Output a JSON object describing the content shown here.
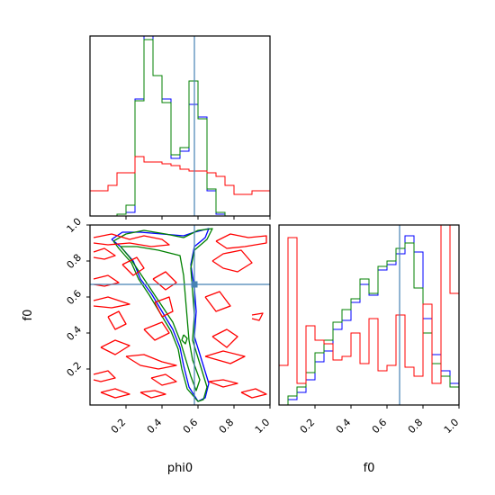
{
  "chart_data": {
    "type": "corner",
    "xlabels": [
      "phi0",
      "f0"
    ],
    "ylabel_2d": "f0",
    "ticks": [
      "0.2",
      "0.4",
      "0.6",
      "0.8",
      "1.0"
    ],
    "tick_values": [
      0.2,
      0.4,
      0.6,
      0.8,
      1.0
    ],
    "xlim": [
      0.0,
      1.0
    ],
    "ylim": [
      0.0,
      1.0
    ],
    "truth": {
      "phi0": 0.58,
      "f0": 0.67
    },
    "colors": {
      "blue": "#0000ff",
      "green": "#008000",
      "red": "#ff0000",
      "truth": "#4682b4"
    },
    "histograms": {
      "phi0": {
        "bin_edges": [
          0.0,
          0.05,
          0.1,
          0.15,
          0.2,
          0.25,
          0.3,
          0.35,
          0.4,
          0.45,
          0.5,
          0.55,
          0.6,
          0.65,
          0.7,
          0.75,
          0.8,
          0.85,
          0.9,
          0.95,
          1.0
        ],
        "ymax": 1.0,
        "series": [
          {
            "color": "blue",
            "values": [
              0,
              0,
              0,
              0.01,
              0.02,
              0.65,
              1.0,
              0.78,
              0.65,
              0.32,
              0.36,
              0.62,
              0.55,
              0.14,
              0.01,
              0,
              0,
              0,
              0,
              0
            ]
          },
          {
            "color": "green",
            "values": [
              0,
              0,
              0,
              0.01,
              0.06,
              0.64,
              0.98,
              0.78,
              0.63,
              0.34,
              0.38,
              0.75,
              0.54,
              0.15,
              0.02,
              0,
              0,
              0,
              0,
              0
            ]
          },
          {
            "color": "red",
            "values": [
              0.14,
              0.14,
              0.17,
              0.24,
              0.24,
              0.33,
              0.3,
              0.3,
              0.29,
              0.28,
              0.26,
              0.25,
              0.25,
              0.24,
              0.22,
              0.17,
              0.12,
              0.12,
              0.14,
              0.14
            ]
          }
        ]
      },
      "f0": {
        "bin_edges": [
          0.0,
          0.05,
          0.1,
          0.15,
          0.2,
          0.25,
          0.3,
          0.35,
          0.4,
          0.45,
          0.5,
          0.55,
          0.6,
          0.65,
          0.7,
          0.75,
          0.8,
          0.85,
          0.9,
          0.95,
          1.0
        ],
        "ymax": 1.0,
        "series": [
          {
            "color": "blue",
            "values": [
              0.0,
              0.03,
              0.07,
              0.14,
              0.24,
              0.3,
              0.42,
              0.47,
              0.57,
              0.67,
              0.61,
              0.75,
              0.78,
              0.84,
              0.94,
              0.85,
              0.48,
              0.28,
              0.19,
              0.12
            ]
          },
          {
            "color": "green",
            "values": [
              0.0,
              0.05,
              0.1,
              0.18,
              0.29,
              0.36,
              0.46,
              0.53,
              0.59,
              0.7,
              0.62,
              0.77,
              0.8,
              0.87,
              0.9,
              0.65,
              0.4,
              0.23,
              0.16,
              0.1
            ]
          },
          {
            "color": "red",
            "values": [
              0.22,
              0.93,
              0.12,
              0.44,
              0.36,
              0.34,
              0.25,
              0.27,
              0.4,
              0.23,
              0.48,
              0.19,
              0.22,
              0.5,
              0.21,
              0.16,
              0.56,
              0.12,
              1.0,
              0.62
            ]
          }
        ]
      }
    },
    "contours_2d": [
      {
        "color": "blue",
        "paths": [
          [
            [
              0.12,
              0.92
            ],
            [
              0.18,
              0.96
            ],
            [
              0.28,
              0.96
            ],
            [
              0.4,
              0.95
            ],
            [
              0.52,
              0.94
            ],
            [
              0.58,
              0.96
            ],
            [
              0.66,
              0.98
            ],
            [
              0.64,
              0.93
            ],
            [
              0.58,
              0.88
            ],
            [
              0.56,
              0.78
            ],
            [
              0.58,
              0.65
            ],
            [
              0.59,
              0.52
            ],
            [
              0.58,
              0.38
            ],
            [
              0.62,
              0.25
            ],
            [
              0.66,
              0.12
            ],
            [
              0.64,
              0.04
            ],
            [
              0.6,
              0.02
            ],
            [
              0.55,
              0.1
            ],
            [
              0.52,
              0.22
            ],
            [
              0.5,
              0.32
            ],
            [
              0.46,
              0.42
            ],
            [
              0.4,
              0.52
            ],
            [
              0.34,
              0.62
            ],
            [
              0.28,
              0.7
            ],
            [
              0.24,
              0.8
            ],
            [
              0.17,
              0.88
            ],
            [
              0.12,
              0.92
            ]
          ]
        ]
      },
      {
        "color": "green",
        "paths": [
          [
            [
              0.13,
              0.91
            ],
            [
              0.2,
              0.95
            ],
            [
              0.3,
              0.97
            ],
            [
              0.42,
              0.95
            ],
            [
              0.52,
              0.93
            ],
            [
              0.6,
              0.97
            ],
            [
              0.68,
              0.98
            ],
            [
              0.65,
              0.92
            ],
            [
              0.58,
              0.86
            ],
            [
              0.56,
              0.76
            ],
            [
              0.57,
              0.63
            ],
            [
              0.58,
              0.5
            ],
            [
              0.57,
              0.36
            ],
            [
              0.61,
              0.23
            ],
            [
              0.65,
              0.1
            ],
            [
              0.63,
              0.03
            ],
            [
              0.6,
              0.02
            ],
            [
              0.54,
              0.09
            ],
            [
              0.51,
              0.2
            ],
            [
              0.49,
              0.31
            ],
            [
              0.45,
              0.41
            ],
            [
              0.39,
              0.51
            ],
            [
              0.33,
              0.61
            ],
            [
              0.27,
              0.7
            ],
            [
              0.23,
              0.79
            ],
            [
              0.16,
              0.87
            ],
            [
              0.13,
              0.91
            ]
          ],
          [
            [
              0.17,
              0.88
            ],
            [
              0.22,
              0.82
            ],
            [
              0.28,
              0.73
            ],
            [
              0.34,
              0.64
            ],
            [
              0.4,
              0.55
            ],
            [
              0.46,
              0.46
            ],
            [
              0.5,
              0.36
            ],
            [
              0.53,
              0.26
            ],
            [
              0.56,
              0.16
            ],
            [
              0.59,
              0.08
            ],
            [
              0.61,
              0.14
            ],
            [
              0.57,
              0.25
            ],
            [
              0.55,
              0.36
            ],
            [
              0.54,
              0.48
            ],
            [
              0.53,
              0.6
            ],
            [
              0.52,
              0.72
            ],
            [
              0.5,
              0.83
            ],
            [
              0.38,
              0.86
            ],
            [
              0.26,
              0.88
            ],
            [
              0.17,
              0.88
            ]
          ],
          [
            [
              0.52,
              0.39
            ],
            [
              0.54,
              0.37
            ],
            [
              0.53,
              0.34
            ],
            [
              0.51,
              0.36
            ],
            [
              0.52,
              0.39
            ]
          ]
        ]
      },
      {
        "color": "red",
        "paths": [
          [
            [
              0.02,
              0.93
            ],
            [
              0.12,
              0.95
            ],
            [
              0.22,
              0.92
            ],
            [
              0.3,
              0.94
            ],
            [
              0.4,
              0.92
            ],
            [
              0.44,
              0.89
            ],
            [
              0.34,
              0.88
            ],
            [
              0.22,
              0.9
            ],
            [
              0.1,
              0.89
            ],
            [
              0.02,
              0.9
            ]
          ],
          [
            [
              0.7,
              0.91
            ],
            [
              0.78,
              0.95
            ],
            [
              0.88,
              0.93
            ],
            [
              0.98,
              0.94
            ],
            [
              0.98,
              0.9
            ],
            [
              0.86,
              0.88
            ],
            [
              0.76,
              0.87
            ],
            [
              0.7,
              0.91
            ]
          ],
          [
            [
              0.02,
              0.85
            ],
            [
              0.08,
              0.87
            ],
            [
              0.14,
              0.83
            ],
            [
              0.08,
              0.81
            ],
            [
              0.02,
              0.82
            ]
          ],
          [
            [
              0.18,
              0.78
            ],
            [
              0.26,
              0.82
            ],
            [
              0.3,
              0.76
            ],
            [
              0.24,
              0.72
            ],
            [
              0.18,
              0.78
            ]
          ],
          [
            [
              0.68,
              0.8
            ],
            [
              0.74,
              0.84
            ],
            [
              0.84,
              0.86
            ],
            [
              0.9,
              0.79
            ],
            [
              0.82,
              0.74
            ],
            [
              0.74,
              0.76
            ],
            [
              0.68,
              0.8
            ]
          ],
          [
            [
              0.02,
              0.7
            ],
            [
              0.1,
              0.72
            ],
            [
              0.16,
              0.68
            ],
            [
              0.08,
              0.66
            ],
            [
              0.02,
              0.67
            ]
          ],
          [
            [
              0.35,
              0.7
            ],
            [
              0.42,
              0.74
            ],
            [
              0.48,
              0.68
            ],
            [
              0.42,
              0.64
            ],
            [
              0.35,
              0.7
            ]
          ],
          [
            [
              0.02,
              0.58
            ],
            [
              0.1,
              0.6
            ],
            [
              0.22,
              0.56
            ],
            [
              0.12,
              0.54
            ],
            [
              0.02,
              0.55
            ]
          ],
          [
            [
              0.36,
              0.57
            ],
            [
              0.44,
              0.6
            ],
            [
              0.46,
              0.52
            ],
            [
              0.4,
              0.49
            ],
            [
              0.36,
              0.57
            ]
          ],
          [
            [
              0.64,
              0.6
            ],
            [
              0.72,
              0.63
            ],
            [
              0.78,
              0.55
            ],
            [
              0.7,
              0.52
            ],
            [
              0.64,
              0.6
            ]
          ],
          [
            [
              0.9,
              0.5
            ],
            [
              0.96,
              0.51
            ],
            [
              0.94,
              0.47
            ],
            [
              0.9,
              0.48
            ]
          ],
          [
            [
              0.1,
              0.49
            ],
            [
              0.16,
              0.52
            ],
            [
              0.2,
              0.45
            ],
            [
              0.14,
              0.42
            ],
            [
              0.1,
              0.49
            ]
          ],
          [
            [
              0.3,
              0.42
            ],
            [
              0.4,
              0.46
            ],
            [
              0.44,
              0.4
            ],
            [
              0.36,
              0.36
            ],
            [
              0.3,
              0.42
            ]
          ],
          [
            [
              0.68,
              0.38
            ],
            [
              0.76,
              0.42
            ],
            [
              0.82,
              0.38
            ],
            [
              0.76,
              0.32
            ],
            [
              0.68,
              0.38
            ]
          ],
          [
            [
              0.06,
              0.32
            ],
            [
              0.14,
              0.36
            ],
            [
              0.22,
              0.33
            ],
            [
              0.14,
              0.28
            ],
            [
              0.06,
              0.32
            ]
          ],
          [
            [
              0.2,
              0.27
            ],
            [
              0.3,
              0.28
            ],
            [
              0.4,
              0.24
            ],
            [
              0.48,
              0.22
            ],
            [
              0.38,
              0.2
            ],
            [
              0.28,
              0.22
            ],
            [
              0.2,
              0.27
            ]
          ],
          [
            [
              0.64,
              0.27
            ],
            [
              0.74,
              0.3
            ],
            [
              0.86,
              0.27
            ],
            [
              0.78,
              0.23
            ],
            [
              0.64,
              0.27
            ]
          ],
          [
            [
              0.02,
              0.17
            ],
            [
              0.1,
              0.19
            ],
            [
              0.14,
              0.15
            ],
            [
              0.06,
              0.13
            ],
            [
              0.02,
              0.14
            ]
          ],
          [
            [
              0.34,
              0.15
            ],
            [
              0.42,
              0.17
            ],
            [
              0.48,
              0.13
            ],
            [
              0.4,
              0.11
            ],
            [
              0.34,
              0.15
            ]
          ],
          [
            [
              0.66,
              0.13
            ],
            [
              0.74,
              0.14
            ],
            [
              0.82,
              0.12
            ],
            [
              0.74,
              0.1
            ],
            [
              0.66,
              0.13
            ]
          ],
          [
            [
              0.06,
              0.07
            ],
            [
              0.14,
              0.09
            ],
            [
              0.22,
              0.06
            ],
            [
              0.14,
              0.04
            ],
            [
              0.06,
              0.07
            ]
          ],
          [
            [
              0.28,
              0.07
            ],
            [
              0.36,
              0.08
            ],
            [
              0.42,
              0.06
            ],
            [
              0.34,
              0.04
            ],
            [
              0.28,
              0.07
            ]
          ],
          [
            [
              0.84,
              0.07
            ],
            [
              0.92,
              0.09
            ],
            [
              0.98,
              0.06
            ],
            [
              0.9,
              0.04
            ],
            [
              0.84,
              0.07
            ]
          ]
        ]
      }
    ]
  }
}
